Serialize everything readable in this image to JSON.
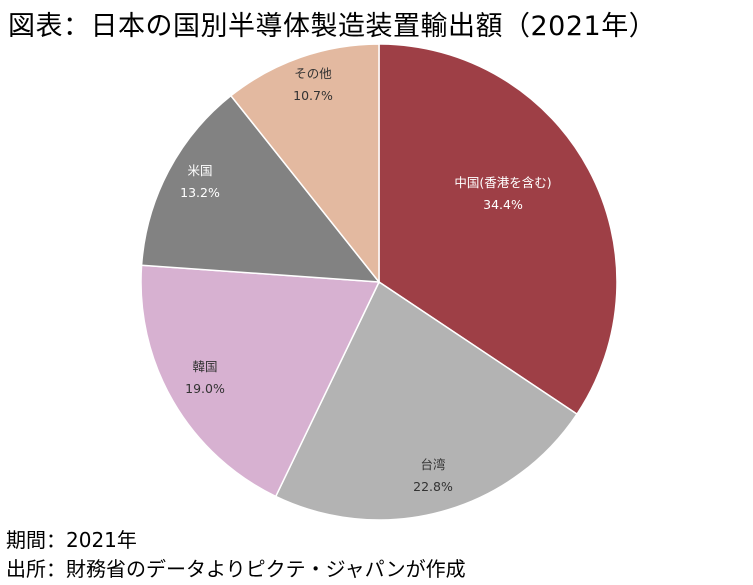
{
  "title": "図表：日本の国別半導体製造装置輸出額（2021年）",
  "footer": {
    "period": "期間：2021年",
    "source": "出所：財務省のデータよりピクテ・ジャパンが作成"
  },
  "chart_data": {
    "type": "pie",
    "title": "図表：日本の国別半導体製造装置輸出額（2021年）",
    "start": "12 o'clock, clockwise",
    "slices": [
      {
        "label": "中国(香港を含む)",
        "value": 34.4,
        "value_label": "34.4%",
        "color": "#9e3f46",
        "text_color": "#ffffff"
      },
      {
        "label": "台湾",
        "value": 22.8,
        "value_label": "22.8%",
        "color": "#b3b3b3",
        "text_color": "#333333"
      },
      {
        "label": "韓国",
        "value": 19.0,
        "value_label": "19.0%",
        "color": "#d7b1d1",
        "text_color": "#333333"
      },
      {
        "label": "米国",
        "value": 13.2,
        "value_label": "13.2%",
        "color": "#828282",
        "text_color": "#ffffff"
      },
      {
        "label": "その他",
        "value": 10.7,
        "value_label": "10.7%",
        "color": "#e3b9a0",
        "text_color": "#333333"
      }
    ]
  }
}
